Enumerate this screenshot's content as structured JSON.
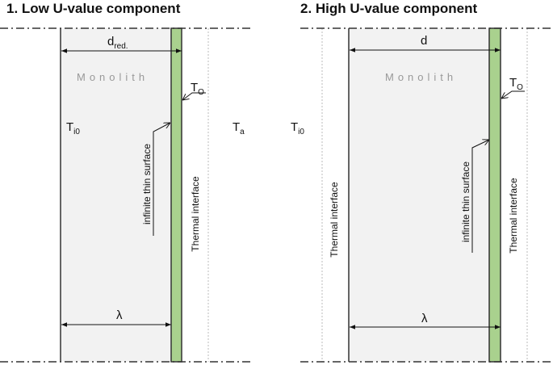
{
  "panels": [
    {
      "title": "1. Low U-value component",
      "thickness_label": "d",
      "thickness_subscript": "red.",
      "material_label": "Monolith",
      "surface_temp": {
        "main": "T",
        "sub": "O"
      },
      "inner_temp": {
        "main": "T",
        "sub": "i0"
      },
      "ambient_temp": {
        "main": "T",
        "sub": "a"
      },
      "surface_note": "infinite thin surface",
      "interface_right": "Thermal interface",
      "conductivity_label": "λ"
    },
    {
      "title": "2. High U-value component",
      "thickness_label": "d",
      "material_label": "Monolith",
      "surface_temp": {
        "main": "T",
        "sub": "O"
      },
      "inner_temp": {
        "main": "T",
        "sub": "i0"
      },
      "surface_note": "infinite thin surface",
      "interface_left": "Thermal interface",
      "interface_right": "Thermal interface",
      "conductivity_label": "λ"
    }
  ],
  "colors": {
    "monolith": "#f2f2f2",
    "surface_layer": "#a9d18e",
    "outline": "#333333",
    "dotted": "#bbbbbb"
  }
}
